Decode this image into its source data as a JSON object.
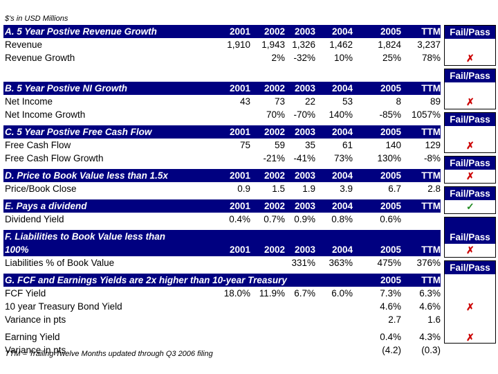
{
  "top_note": "$'s in USD Millions",
  "bottom_note": "TTM = Trailing Twelve Months updated through Q3 2006 filing",
  "fail_pass_label": "Fail/Pass",
  "colors": {
    "header_bg": "#000080",
    "fail": "#cc0000",
    "pass": "#228b22"
  },
  "sections": [
    {
      "title": "A. 5 Year Postive Revenue Growth",
      "years": [
        "2001",
        "2002",
        "2003",
        "2004",
        "2005",
        "TTM"
      ],
      "rows": [
        {
          "label": "Revenue",
          "values": [
            "1,910",
            "1,943",
            "1,326",
            "1,462",
            "1,824",
            "3,237"
          ]
        },
        {
          "label": "Revenue Growth",
          "values": [
            "",
            "2%",
            "-32%",
            "10%",
            "25%",
            "78%"
          ]
        }
      ],
      "result": "fail",
      "mark": "✗"
    },
    {
      "title": "B. 5 Year Postive NI Growth",
      "years": [
        "2001",
        "2002",
        "2003",
        "2004",
        "2005",
        "TTM"
      ],
      "rows": [
        {
          "label": "Net Income",
          "values": [
            "43",
            "73",
            "22",
            "53",
            "8",
            "89"
          ]
        },
        {
          "label": "Net Income Growth",
          "values": [
            "",
            "70%",
            "-70%",
            "140%",
            "-85%",
            "1057%"
          ]
        }
      ],
      "result": "fail",
      "mark": "✗"
    },
    {
      "title": "C. 5 Year Postive Free Cash Flow",
      "years": [
        "2001",
        "2002",
        "2003",
        "2004",
        "2005",
        "TTM"
      ],
      "rows": [
        {
          "label": "Free Cash Flow",
          "values": [
            "75",
            "59",
            "35",
            "61",
            "140",
            "129"
          ]
        },
        {
          "label": "Free Cash Flow Growth",
          "values": [
            "",
            "-21%",
            "-41%",
            "73%",
            "130%",
            "-8%"
          ]
        }
      ],
      "result": "fail",
      "mark": "✗"
    },
    {
      "title": "D. Price to Book Value less than 1.5x",
      "years": [
        "2001",
        "2002",
        "2003",
        "2004",
        "2005",
        "TTM"
      ],
      "rows": [
        {
          "label": "Price/Book Close",
          "values": [
            "0.9",
            "1.5",
            "1.9",
            "3.9",
            "6.7",
            "2.8"
          ]
        }
      ],
      "result": "fail",
      "mark": "✗"
    },
    {
      "title": "E. Pays a dividend",
      "years": [
        "2001",
        "2002",
        "2003",
        "2004",
        "2005",
        "TTM"
      ],
      "rows": [
        {
          "label": "Dividend Yield",
          "values": [
            "0.4%",
            "0.7%",
            "0.9%",
            "0.8%",
            "0.6%",
            ""
          ]
        }
      ],
      "result": "pass",
      "mark": "✓"
    },
    {
      "title_line1": "F. Liabilities to Book Value less than",
      "title_line2": "100%",
      "years": [
        "2001",
        "2002",
        "2003",
        "2004",
        "2005",
        "TTM"
      ],
      "rows": [
        {
          "label": "Liabilities % of Book Value",
          "values": [
            "",
            "",
            "331%",
            "363%",
            "475%",
            "376%"
          ]
        }
      ],
      "result": "fail",
      "mark": "✗"
    },
    {
      "title": "G. FCF and Earnings Yields are 2x higher than 10-year Treasury",
      "years": [
        "",
        "",
        "",
        "",
        "2005",
        "TTM"
      ],
      "rows": [
        {
          "label": "FCF Yield",
          "values": [
            "18.0%",
            "11.9%",
            "6.7%",
            "6.0%",
            "7.3%",
            "6.3%"
          ]
        },
        {
          "label": "10 year Treasury Bond Yield",
          "values": [
            "",
            "",
            "",
            "",
            "4.6%",
            "4.6%"
          ]
        },
        {
          "label": "Variance in pts",
          "values": [
            "",
            "",
            "",
            "",
            "2.7",
            "1.6"
          ]
        },
        {
          "label": "Earning Yield",
          "values": [
            "",
            "",
            "",
            "",
            "0.4%",
            "4.3%"
          ]
        },
        {
          "label": "Variance in pts",
          "values": [
            "",
            "",
            "",
            "",
            "(4.2)",
            "(0.3)"
          ]
        }
      ],
      "result_1": "fail",
      "mark_1": "✗",
      "result_2": "fail",
      "mark_2": "✗"
    }
  ]
}
